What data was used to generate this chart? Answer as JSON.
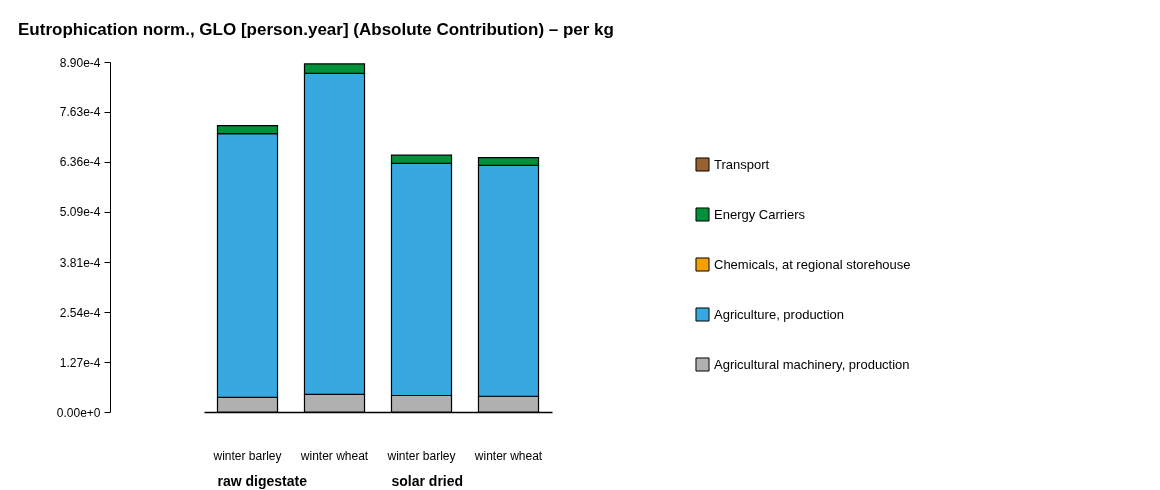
{
  "chart_data": {
    "type": "bar",
    "title": "Eutrophication norm., GLO [person.year] (Absolute Contribution) – per kg",
    "categories": [
      "winter barley",
      "winter wheat",
      "winter barley",
      "winter wheat"
    ],
    "annotations": [
      "raw digestate",
      "solar dried"
    ],
    "stacked": true,
    "grid": false,
    "legend": "right",
    "ylim": [
      0,
      0.00089
    ],
    "yticks": [
      {
        "value": 0,
        "label": "0.00e+0"
      },
      {
        "value": 0.000127,
        "label": "1.27e-4"
      },
      {
        "value": 0.000254,
        "label": "2.54e-4"
      },
      {
        "value": 0.000381,
        "label": "3.81e-4"
      },
      {
        "value": 0.000509,
        "label": "5.09e-4"
      },
      {
        "value": 0.000636,
        "label": "6.36e-4"
      },
      {
        "value": 0.000763,
        "label": "7.63e-4"
      },
      {
        "value": 0.00089,
        "label": "8.90e-4"
      }
    ],
    "series": [
      {
        "name": "Agricultural machinery, production",
        "color": "#b0b0b0",
        "values": [
          3.7e-05,
          4.5e-05,
          4.2e-05,
          4e-05
        ]
      },
      {
        "name": "Agriculture, production",
        "color": "#38a8e0",
        "values": [
          0.000671,
          0.000816,
          0.00059,
          0.000587
        ]
      },
      {
        "name": "Chemicals, at regional storehouse",
        "color": "#f5a000",
        "values": [
          0,
          0,
          0,
          0
        ]
      },
      {
        "name": "Energy Carriers",
        "color": "#00913a",
        "values": [
          2e-05,
          2.4e-05,
          2.1e-05,
          2e-05
        ]
      },
      {
        "name": "Transport",
        "color": "#9a6131",
        "values": [
          0,
          0,
          0,
          0
        ]
      }
    ]
  }
}
